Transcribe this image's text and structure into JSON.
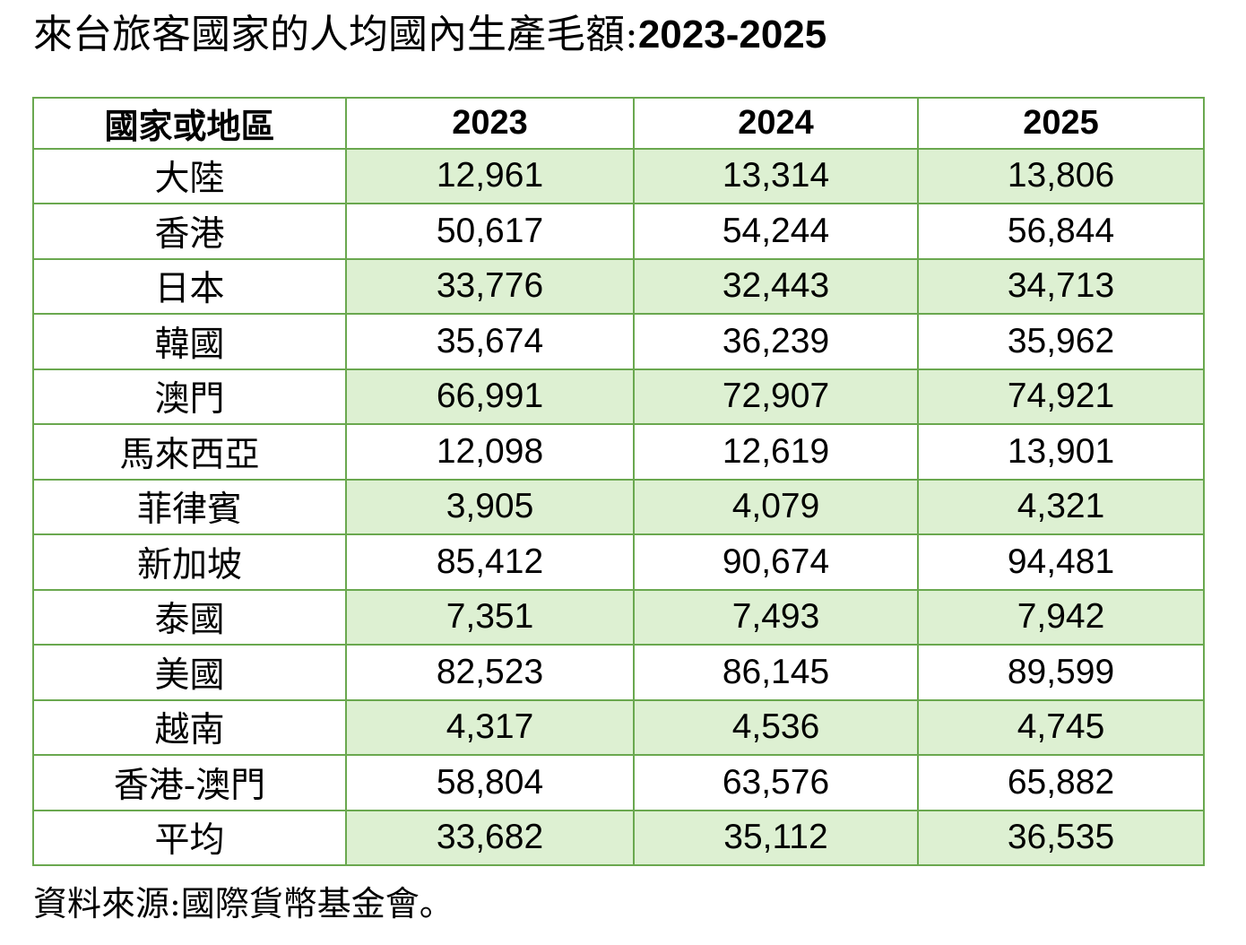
{
  "page": {
    "title_zh": "來台旅客國家的人均國內生產毛額:",
    "title_years": "2023-2025",
    "source_note": "資料來源:國際貨幣基金會。"
  },
  "colors": {
    "table_border": "#6aa84f",
    "shaded_cell": "#ddf0d2",
    "unshaded_cell": "#ffffff",
    "text": "#000000"
  },
  "table": {
    "header": {
      "col0": "國家或地區",
      "col1": "2023",
      "col2": "2024",
      "col3": "2025"
    },
    "rows": [
      {
        "name": "大陸",
        "values": [
          "12,961",
          "13,314",
          "13,806"
        ],
        "shaded": true
      },
      {
        "name": "香港",
        "values": [
          "50,617",
          "54,244",
          "56,844"
        ],
        "shaded": false
      },
      {
        "name": "日本",
        "values": [
          "33,776",
          "32,443",
          "34,713"
        ],
        "shaded": true
      },
      {
        "name": "韓國",
        "values": [
          "35,674",
          "36,239",
          "35,962"
        ],
        "shaded": false
      },
      {
        "name": "澳門",
        "values": [
          "66,991",
          "72,907",
          "74,921"
        ],
        "shaded": true
      },
      {
        "name": "馬來西亞",
        "values": [
          "12,098",
          "12,619",
          "13,901"
        ],
        "shaded": false
      },
      {
        "name": "菲律賓",
        "values": [
          "3,905",
          "4,079",
          "4,321"
        ],
        "shaded": true
      },
      {
        "name": "新加坡",
        "values": [
          "85,412",
          "90,674",
          "94,481"
        ],
        "shaded": false
      },
      {
        "name": "泰國",
        "values": [
          "7,351",
          "7,493",
          "7,942"
        ],
        "shaded": true
      },
      {
        "name": "美國",
        "values": [
          "82,523",
          "86,145",
          "89,599"
        ],
        "shaded": false
      },
      {
        "name": "越南",
        "values": [
          "4,317",
          "4,536",
          "4,745"
        ],
        "shaded": true
      },
      {
        "name": "香港-澳門",
        "values": [
          "58,804",
          "63,576",
          "65,882"
        ],
        "shaded": false
      },
      {
        "name": "平均",
        "values": [
          "33,682",
          "35,112",
          "36,535"
        ],
        "shaded": true
      }
    ]
  }
}
